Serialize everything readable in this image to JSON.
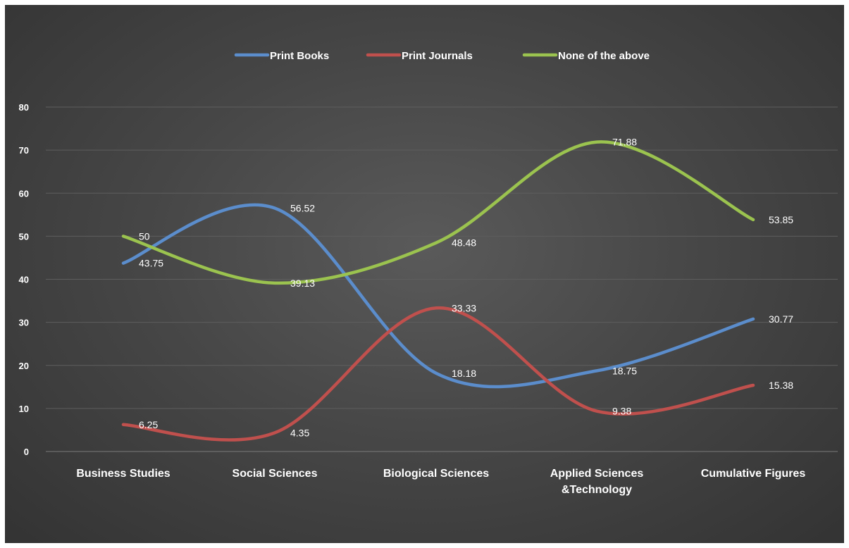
{
  "chart_data": {
    "type": "line",
    "categories": [
      [
        "Business Studies"
      ],
      [
        "Social Sciences"
      ],
      [
        "Biological Sciences"
      ],
      [
        "Applied Sciences",
        "&Technology"
      ],
      [
        "Cumulative Figures"
      ]
    ],
    "series": [
      {
        "name": "Print Books",
        "color": "#5b8dcc",
        "values": [
          43.75,
          56.52,
          18.18,
          18.75,
          30.77
        ]
      },
      {
        "name": "Print Journals",
        "color": "#c0504d",
        "values": [
          6.25,
          4.35,
          33.33,
          9.38,
          15.38
        ]
      },
      {
        "name": "None of the above",
        "color": "#9bc34f",
        "values": [
          50,
          39.13,
          48.48,
          71.88,
          53.85
        ]
      }
    ],
    "ylim": [
      0,
      80
    ],
    "yticks": [
      0,
      10,
      20,
      30,
      40,
      50,
      60,
      70,
      80
    ],
    "smooth": true,
    "data_labels": true,
    "grid": true,
    "legend": "top"
  }
}
